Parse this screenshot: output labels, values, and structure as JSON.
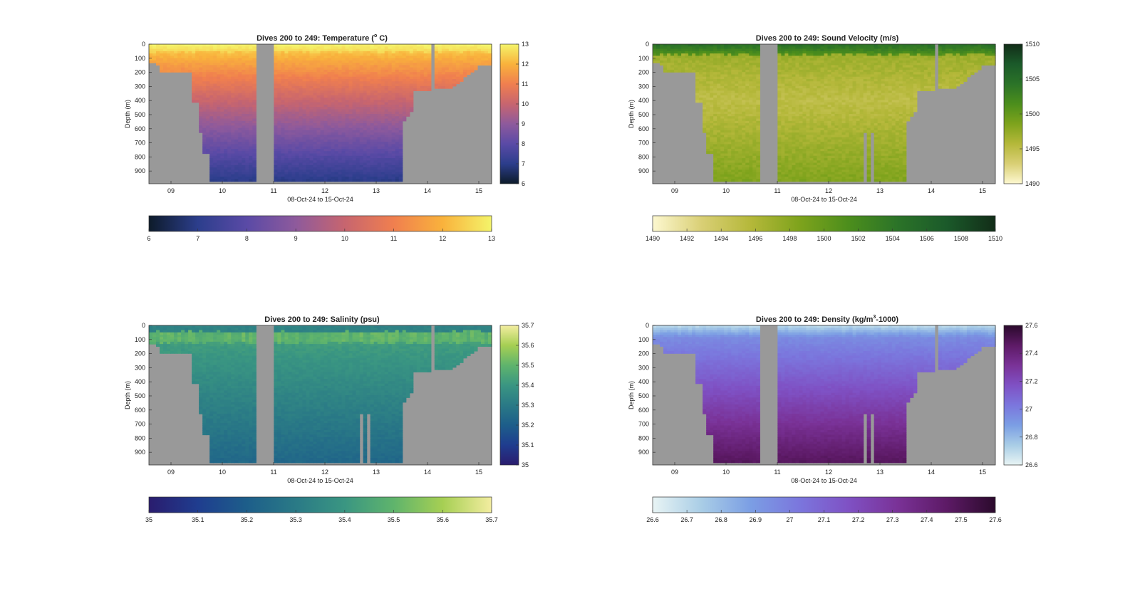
{
  "figure": {
    "panels": [
      {
        "id": "temperature",
        "title": "Dives 200 to 249: Temperature (°C)",
        "title_main": "Dives 200 to 249: Temperature (",
        "title_sup": "o",
        "title_tail": " C)",
        "cbar_ticks": [
          "6",
          "7",
          "8",
          "9",
          "10",
          "11",
          "12",
          "13"
        ],
        "hbar_ticks": [
          "6",
          "7",
          "8",
          "9",
          "10",
          "11",
          "12",
          "13"
        ],
        "colormap": [
          "#0d1b2a",
          "#2c3e8c",
          "#5a4aa6",
          "#8e5a9c",
          "#c7656f",
          "#f07f4f",
          "#f9b23c",
          "#f4f46a"
        ]
      },
      {
        "id": "sound_velocity",
        "title": "Dives 200 to 249: Sound Velocity (m/s)",
        "title_main": "Dives 200 to 249: Sound Velocity (m/s)",
        "title_sup": "",
        "title_tail": "",
        "cbar_ticks": [
          "1490",
          "1495",
          "1500",
          "1505",
          "1510"
        ],
        "hbar_ticks": [
          "1490",
          "1492",
          "1494",
          "1496",
          "1498",
          "1500",
          "1502",
          "1504",
          "1506",
          "1508",
          "1510"
        ],
        "colormap": [
          "#fdf8d0",
          "#d9cf75",
          "#b5b83a",
          "#7ea31c",
          "#4c8e1c",
          "#2b7328",
          "#1b5a2a",
          "#122d18"
        ]
      },
      {
        "id": "salinity",
        "title": "Dives 200 to 249: Salinity (psu)",
        "title_main": "Dives 200 to 249: Salinity (psu)",
        "title_sup": "",
        "title_tail": "",
        "cbar_ticks": [
          "35",
          "35.1",
          "35.2",
          "35.3",
          "35.4",
          "35.5",
          "35.6",
          "35.7"
        ],
        "hbar_ticks": [
          "35",
          "35.1",
          "35.2",
          "35.3",
          "35.4",
          "35.5",
          "35.6",
          "35.7"
        ],
        "colormap": [
          "#2a1c6e",
          "#1f3d8f",
          "#1d5e8a",
          "#2a7a86",
          "#3a9682",
          "#5fb46c",
          "#a6cf53",
          "#f3eda0"
        ]
      },
      {
        "id": "density",
        "title": "Dives 200 to 249: Density (kg/m³-1000)",
        "title_main": "Dives 200 to 249: Density (kg/m",
        "title_sup": "3",
        "title_tail": "-1000)",
        "cbar_ticks": [
          "26.6",
          "26.8",
          "27",
          "27.2",
          "27.4",
          "27.6"
        ],
        "hbar_ticks": [
          "26.6",
          "26.7",
          "26.8",
          "26.9",
          "27",
          "27.1",
          "27.2",
          "27.3",
          "27.4",
          "27.5",
          "27.6"
        ],
        "colormap": [
          "#e8f4f4",
          "#a9cde6",
          "#7b9ee4",
          "#7b76dd",
          "#7f51c4",
          "#7a3297",
          "#5d1a66",
          "#2b0a2c"
        ]
      }
    ],
    "ylabel": "Depth (m)",
    "xlabel": "08-Oct-24 to 15-Oct-24",
    "depth_ticks": [
      "0",
      "100",
      "200",
      "300",
      "400",
      "500",
      "600",
      "700",
      "800",
      "900"
    ],
    "date_ticks": [
      "09",
      "10",
      "11",
      "12",
      "13",
      "14",
      "15"
    ],
    "missing_color": "#999999"
  },
  "chart_data": [
    {
      "type": "heatmap",
      "title": "Dives 200 to 249: Temperature (°C)",
      "xlabel": "08-Oct-24 to 15-Oct-24",
      "ylabel": "Depth (m)",
      "ylim": [
        0,
        990
      ],
      "y_reversed": true,
      "clim": [
        6,
        13
      ],
      "notes": "Warm surface (~12.5–13) cooling to ~6.5–7 near 950 m; grey = no data/seafloor"
    },
    {
      "type": "heatmap",
      "title": "Dives 200 to 249: Sound Velocity (m/s)",
      "xlabel": "08-Oct-24 to 15-Oct-24",
      "ylabel": "Depth (m)",
      "ylim": [
        0,
        990
      ],
      "y_reversed": true,
      "clim": [
        1490,
        1510
      ],
      "notes": "~1505 at surface, ~1494–1496 at mid depth, ~1496–1498 near 950 m"
    },
    {
      "type": "heatmap",
      "title": "Dives 200 to 249: Salinity (psu)",
      "xlabel": "08-Oct-24 to 15-Oct-24",
      "ylabel": "Depth (m)",
      "ylim": [
        0,
        990
      ],
      "y_reversed": true,
      "clim": [
        35,
        35.7
      ],
      "notes": "~35.3 at surface, ~35.5 around 80–120 m, decreasing to ~35.2 at depth"
    },
    {
      "type": "heatmap",
      "title": "Dives 200 to 249: Density (kg/m³-1000)",
      "xlabel": "08-Oct-24 to 15-Oct-24",
      "ylabel": "Depth (m)",
      "ylim": [
        0,
        990
      ],
      "y_reversed": true,
      "clim": [
        26.6,
        27.6
      ],
      "notes": "~26.7 at surface increasing to ~27.5 near 950 m"
    }
  ]
}
